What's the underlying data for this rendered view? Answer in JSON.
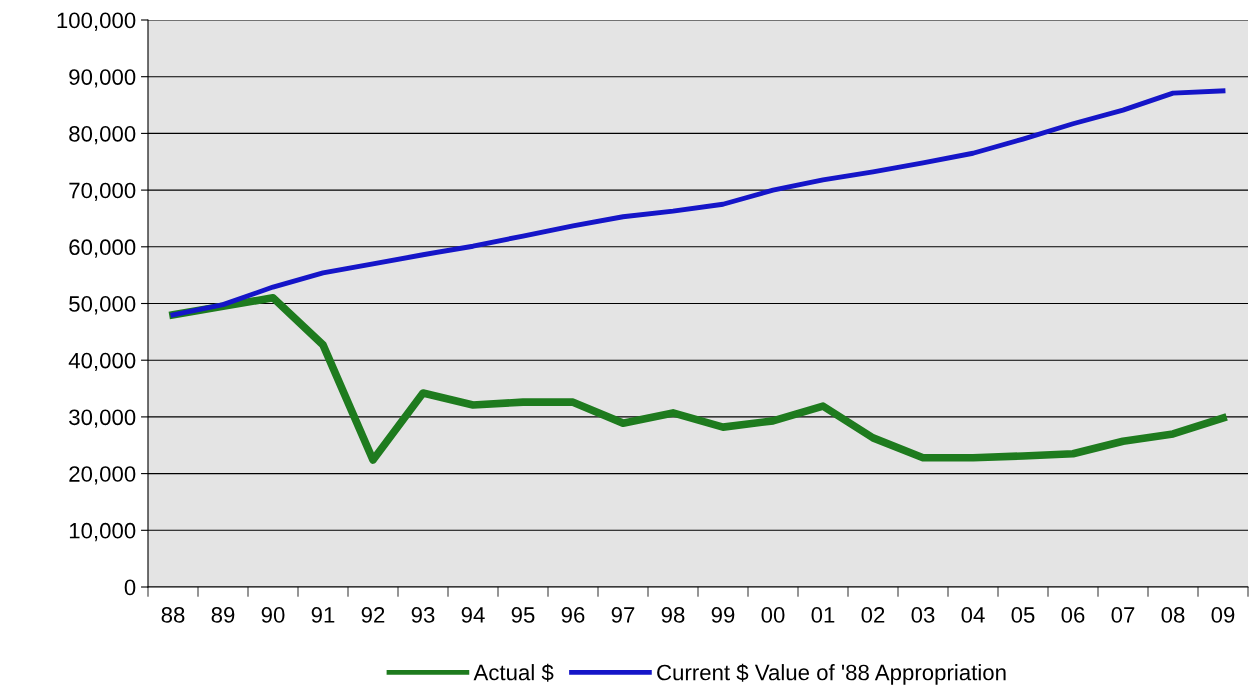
{
  "chart_data": {
    "type": "line",
    "categories": [
      "88",
      "89",
      "90",
      "91",
      "92",
      "93",
      "94",
      "95",
      "96",
      "97",
      "98",
      "99",
      "00",
      "01",
      "02",
      "03",
      "04",
      "05",
      "06",
      "07",
      "08",
      "09"
    ],
    "series": [
      {
        "name": "Actual $",
        "color": "#1e7b1e",
        "values": [
          48000,
          49500,
          51000,
          42700,
          22400,
          34200,
          32100,
          32600,
          32600,
          28900,
          30700,
          28200,
          29300,
          31900,
          26300,
          22800,
          22800,
          23100,
          23500,
          25700,
          27000,
          29800
        ]
      },
      {
        "name": "Current $ Value of '88 Appropriation",
        "color": "#1515c8",
        "values": [
          48000,
          49800,
          52900,
          55400,
          57000,
          58600,
          60100,
          61900,
          63700,
          65300,
          66300,
          67500,
          70000,
          71800,
          73200,
          74800,
          76500,
          79000,
          81700,
          84100,
          87100,
          87500
        ]
      }
    ],
    "ylim": [
      0,
      100000
    ],
    "yticks": [
      {
        "value": 0,
        "label": "0"
      },
      {
        "value": 10000,
        "label": "10,000"
      },
      {
        "value": 20000,
        "label": "20,000"
      },
      {
        "value": 30000,
        "label": "30,000"
      },
      {
        "value": 40000,
        "label": "40,000"
      },
      {
        "value": 50000,
        "label": "50,000"
      },
      {
        "value": 60000,
        "label": "60,000"
      },
      {
        "value": 70000,
        "label": "70,000"
      },
      {
        "value": 80000,
        "label": "80,000"
      },
      {
        "value": 90000,
        "label": "90,000"
      },
      {
        "value": 100000,
        "label": "100,000"
      }
    ],
    "grid": "y",
    "legend": "bottom",
    "marker": "none",
    "line_style": "solid"
  }
}
